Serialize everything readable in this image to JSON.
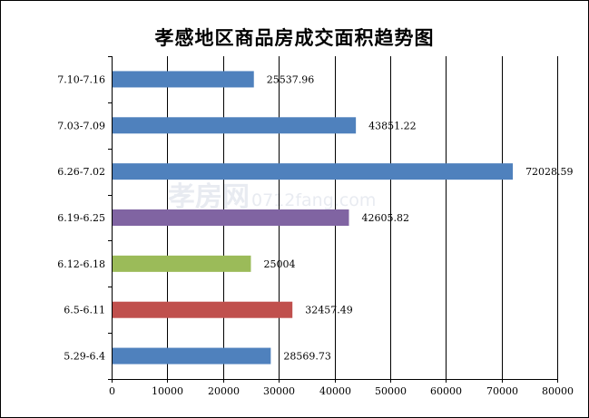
{
  "chart_data": {
    "type": "bar",
    "orientation": "horizontal",
    "title": "孝感地区商品房成交面积趋势图",
    "xlabel": "",
    "ylabel": "",
    "xlim": [
      0,
      80000
    ],
    "x_ticks": [
      0,
      10000,
      20000,
      30000,
      40000,
      50000,
      60000,
      70000,
      80000
    ],
    "grid": "vertical",
    "legend": "none",
    "categories": [
      "7.10-7.16",
      "7.03-7.09",
      "6.26-7.02",
      "6.19-6.25",
      "6.12-6.18",
      "6.5-6.11",
      "5.29-6.4"
    ],
    "values": [
      25537.96,
      43851.22,
      72028.59,
      42605.82,
      25004,
      32457.49,
      28569.73
    ],
    "data_labels": [
      "25537.96",
      "43851.22",
      "72028.59",
      "42605.82",
      "25004",
      "32457.49",
      "28569.73"
    ],
    "bar_colors": [
      "#4f81bd",
      "#4f81bd",
      "#4f81bd",
      "#8064a2",
      "#9bbb59",
      "#c0504d",
      "#4f81bd"
    ]
  },
  "watermark": {
    "brand": "孝房网",
    "url": "0712fang.com"
  }
}
